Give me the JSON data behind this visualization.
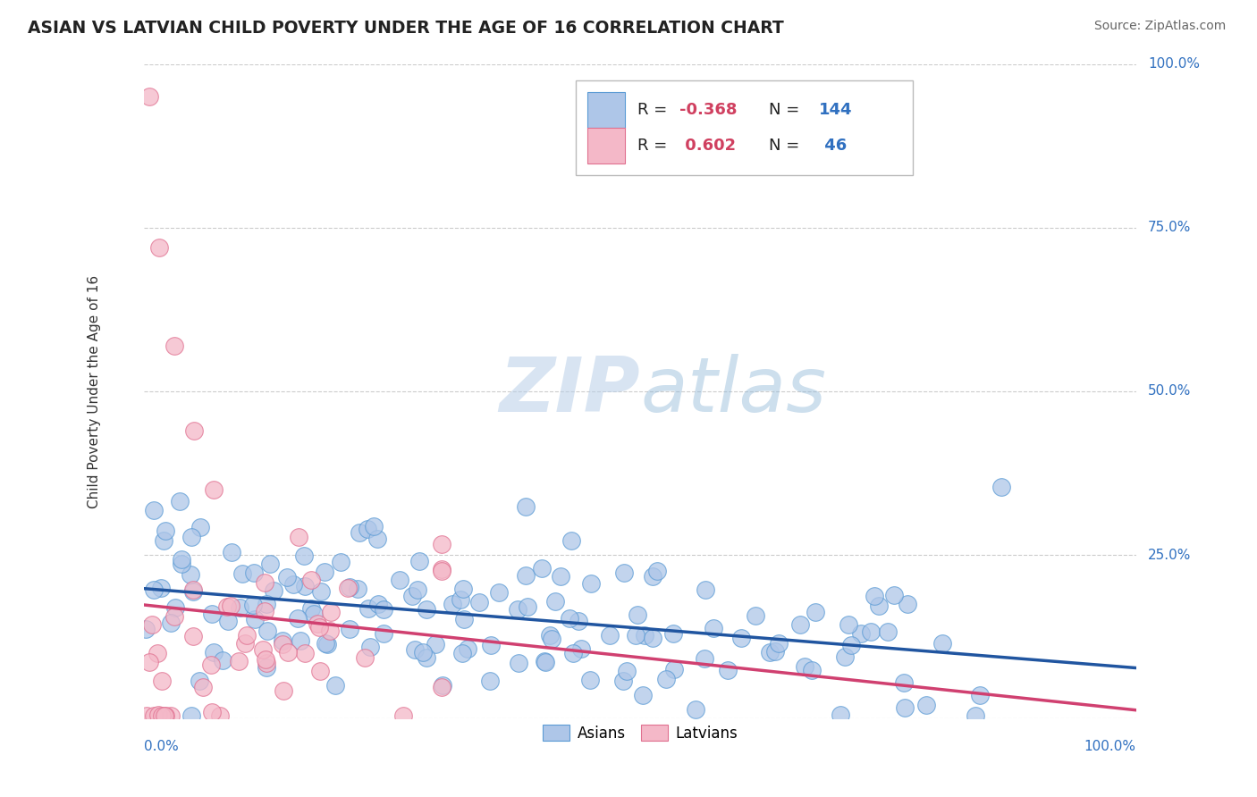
{
  "title": "ASIAN VS LATVIAN CHILD POVERTY UNDER THE AGE OF 16 CORRELATION CHART",
  "source": "Source: ZipAtlas.com",
  "ylabel": "Child Poverty Under the Age of 16",
  "asian_R": -0.368,
  "asian_N": 144,
  "latvian_R": 0.602,
  "latvian_N": 46,
  "asian_color": "#aec6e8",
  "asian_edge_color": "#5b9bd5",
  "latvian_color": "#f4b8c8",
  "latvian_edge_color": "#e07090",
  "asian_line_color": "#2055a0",
  "latvian_line_color": "#d04070",
  "latvian_line_dash_color": "#e090b0",
  "watermark_zip_color": "#b0c8e8",
  "watermark_atlas_color": "#90b0d8",
  "background_color": "#ffffff",
  "grid_color": "#cccccc",
  "legend_R_color": "#d04060",
  "legend_N_color": "#3070c0",
  "legend_text_color": "#222222",
  "right_axis_color": "#3070c0",
  "xleft_color": "#3070c0",
  "xright_color": "#3070c0"
}
